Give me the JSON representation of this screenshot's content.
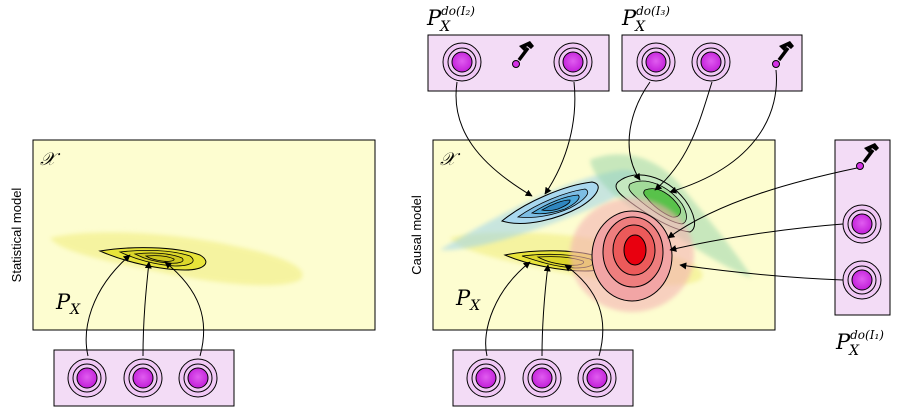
{
  "left_panel": {
    "ylabel": "Statistical model",
    "space_label": "𝒳",
    "dist_label": "P",
    "dist_sub": "X"
  },
  "right_panel": {
    "ylabel": "Causal model",
    "space_label": "𝒳",
    "dist_label": "P",
    "dist_sub": "X"
  },
  "interventions": [
    {
      "id": "I2",
      "label": "P",
      "sub": "X",
      "sup": "do(I₂)"
    },
    {
      "id": "I3",
      "label": "P",
      "sub": "X",
      "sup": "do(I₃)"
    },
    {
      "id": "I1",
      "label": "P",
      "sub": "X",
      "sup": "do(I₁)"
    }
  ],
  "colors": {
    "panel_fill": "#fdfdd0",
    "env_fill": "#f3dcf6",
    "node_fill": "#d433e6",
    "yellow": "#e8e43a",
    "blue": "#4fa9d9",
    "green": "#58c24a",
    "red": "#e8000f"
  },
  "icons": {
    "intervention": "hammer-icon",
    "node": "variable-node-icon"
  }
}
